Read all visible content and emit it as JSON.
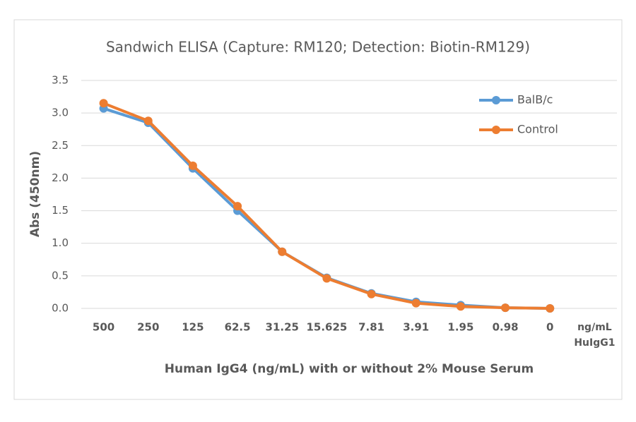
{
  "chart_data": {
    "type": "line",
    "title": "Sandwich ELISA (Capture:  RM120; Detection: Biotin-RM129)",
    "x_label": "Human IgG4 (ng/mL) with or without 2% Mouse Serum",
    "y_label": "Abs (450nm)",
    "x_unit_label": [
      "ng/mL",
      "HuIgG1"
    ],
    "categories": [
      "500",
      "250",
      "125",
      "62.5",
      "31.25",
      "15.625",
      "7.81",
      "3.91",
      "1.95",
      "0.98",
      "0"
    ],
    "series": [
      {
        "name": "BalB/c",
        "color": "#5b9bd5",
        "values": [
          3.07,
          2.85,
          2.15,
          1.5,
          0.87,
          0.47,
          0.23,
          0.1,
          0.05,
          0.01,
          0.0
        ]
      },
      {
        "name": "Control",
        "color": "#ed7d31",
        "values": [
          3.15,
          2.88,
          2.19,
          1.57,
          0.87,
          0.46,
          0.22,
          0.08,
          0.03,
          0.01,
          0.0
        ]
      }
    ],
    "ylim": [
      0,
      3.5
    ],
    "yticks": [
      {
        "value": 0,
        "label": "0.0"
      },
      0.5,
      {
        "value": 1,
        "label": "1.0"
      },
      1.5,
      {
        "value": 2,
        "label": "2.0"
      },
      2.5,
      {
        "value": 3,
        "label": "3.0"
      },
      3.5
    ],
    "grid": true,
    "legend": "upper right"
  }
}
